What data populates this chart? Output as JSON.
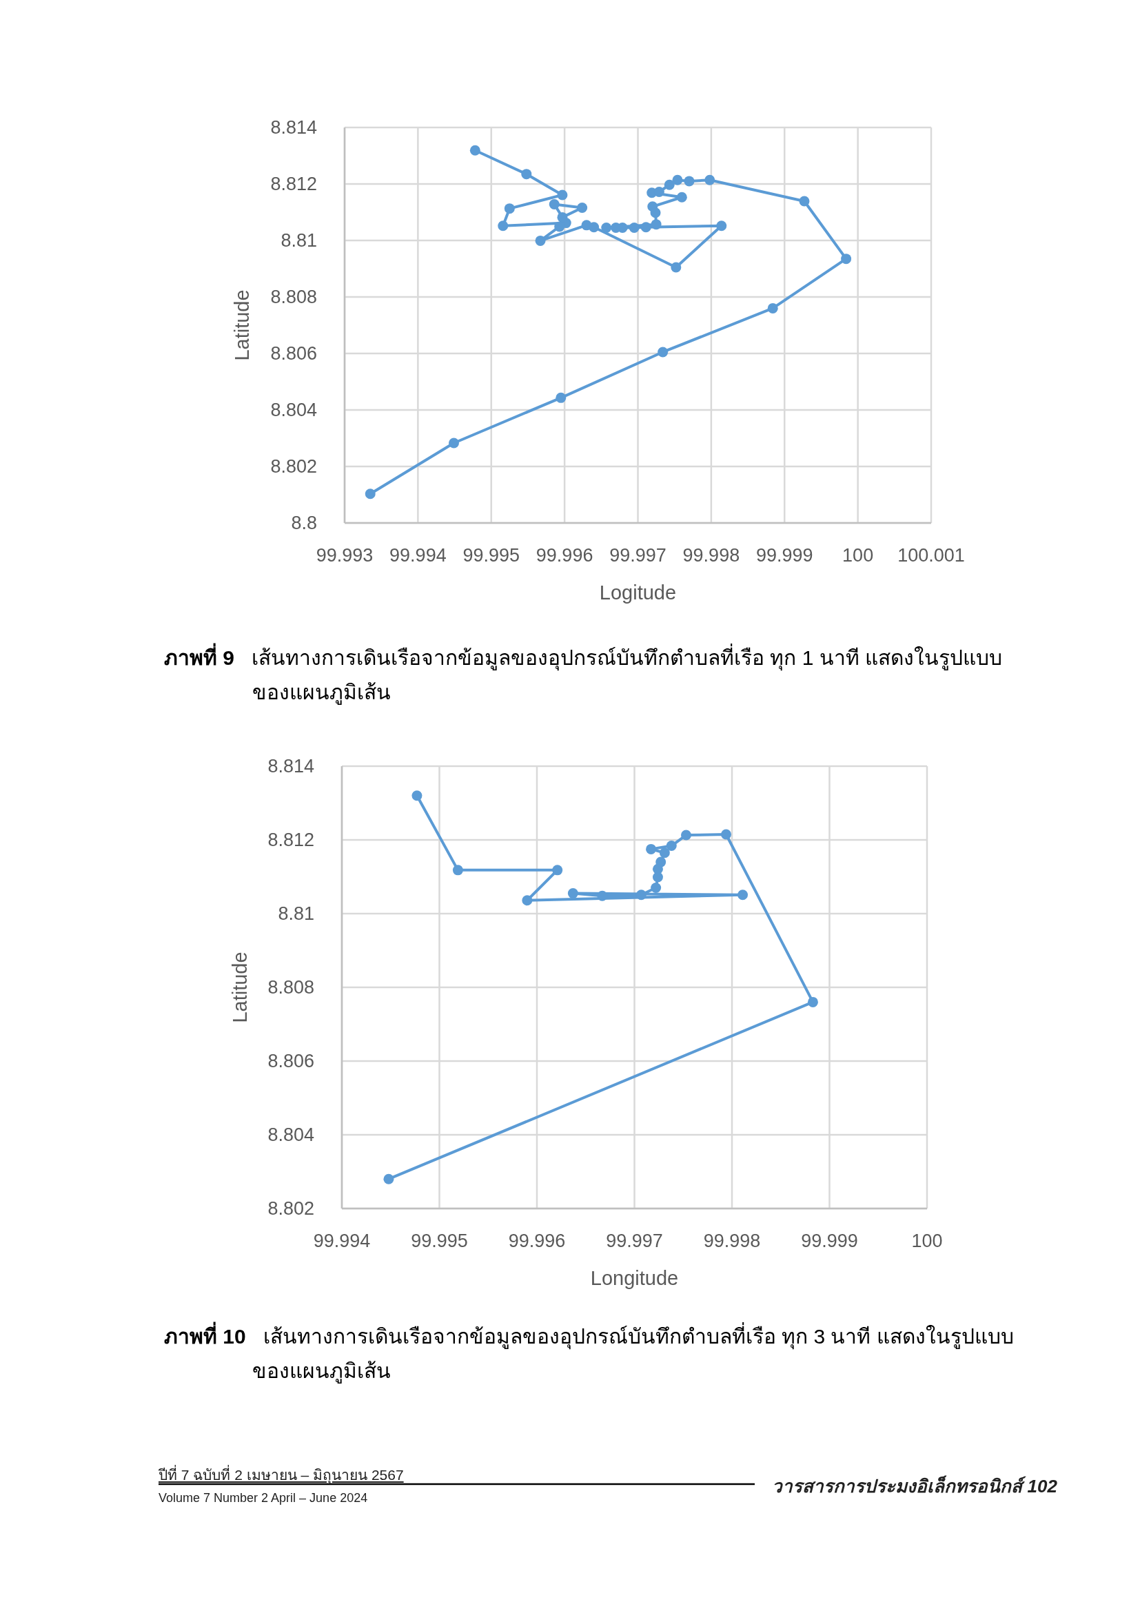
{
  "chart_data": [
    {
      "type": "line",
      "xlabel": "Logitude",
      "ylabel": "Latitude",
      "xlim": [
        99.993,
        100.001
      ],
      "xticks": [
        99.993,
        99.994,
        99.995,
        99.996,
        99.997,
        99.998,
        99.999,
        100,
        100.001
      ],
      "ylim": [
        8.8,
        8.814
      ],
      "yticks": [
        8.8,
        8.802,
        8.804,
        8.806,
        8.808,
        8.81,
        8.812,
        8.814
      ],
      "grid": true,
      "marker": "circle",
      "line_style": "solid",
      "series": [
        {
          "color": "#5b9bd5",
          "x": [
            99.99478,
            99.99548,
            99.99597,
            99.99525,
            99.99516,
            99.99602,
            99.99586,
            99.99624,
            99.99597,
            99.99593,
            99.99567,
            99.9963,
            99.9964,
            99.99752,
            99.99814,
            99.99711,
            99.99695,
            99.99679,
            99.9967,
            99.99657,
            99.99725,
            99.99724,
            99.9972,
            99.9976,
            99.99719,
            99.99729,
            99.99743,
            99.99754,
            99.9977,
            99.99798,
            99.99927,
            99.99984,
            99.99884,
            99.99734,
            99.99595,
            99.99449,
            99.99335
          ],
          "values": [
            8.81319,
            8.81235,
            8.81161,
            8.81113,
            8.81052,
            8.81062,
            8.81128,
            8.81116,
            8.81082,
            8.81049,
            8.80999,
            8.81054,
            8.81047,
            8.80905,
            8.81052,
            8.81047,
            8.81045,
            8.81045,
            8.81045,
            8.81045,
            8.81057,
            8.81098,
            8.8112,
            8.81153,
            8.81169,
            8.81172,
            8.81197,
            8.81214,
            8.8121,
            8.81214,
            8.81139,
            8.80935,
            8.8076,
            8.80605,
            8.80443,
            8.80283,
            8.80103
          ]
        }
      ],
      "annotations": [
        "**ภาพที่ 9** เส้นทางการเดินเรือจากข้อมูลของอุปกรณ์บันทึกตำบลที่เรือ ทุก 1 นาที แสดงในรูปแบบของแผนภูมิเส้น"
      ]
    },
    {
      "type": "line",
      "xlabel": "Longitude",
      "ylabel": "Latitude",
      "xlim": [
        99.994,
        100
      ],
      "xticks": [
        99.994,
        99.995,
        99.996,
        99.997,
        99.998,
        99.999,
        100
      ],
      "ylim": [
        8.802,
        8.814
      ],
      "yticks": [
        8.802,
        8.804,
        8.806,
        8.808,
        8.81,
        8.812,
        8.814
      ],
      "grid": true,
      "marker": "circle",
      "line_style": "solid",
      "series": [
        {
          "color": "#5b9bd5",
          "x": [
            99.99477,
            99.99519,
            99.99621,
            99.9959,
            99.99811,
            99.99637,
            99.99667,
            99.99707,
            99.99722,
            99.99724,
            99.99724,
            99.99727,
            99.99731,
            99.99717,
            99.99738,
            99.99753,
            99.99794,
            99.99883,
            99.99448
          ],
          "values": [
            8.8132,
            8.81118,
            8.81118,
            8.81036,
            8.81051,
            8.81055,
            8.81048,
            8.81051,
            8.8107,
            8.81099,
            8.81121,
            8.8114,
            8.81165,
            8.81175,
            8.81184,
            8.81213,
            8.81215,
            8.8076,
            8.8028
          ]
        }
      ],
      "annotations": [
        "**ภาพที่ 10** เส้นทางการเดินเรือจากข้อมูลของอุปกรณ์บันทึกตำบลที่เรือ ทุก 3 นาที แสดงในรูปแบบของแผนภูมิเส้น",
        "ปีที่ 7 ฉบับที่ 2 เมษายน – มิถุนายน 2567",
        "Volume 7 Number 2 April – June 2024",
        "วารสารการประมงอิเล็กทรอนิกส์ 102"
      ]
    }
  ]
}
